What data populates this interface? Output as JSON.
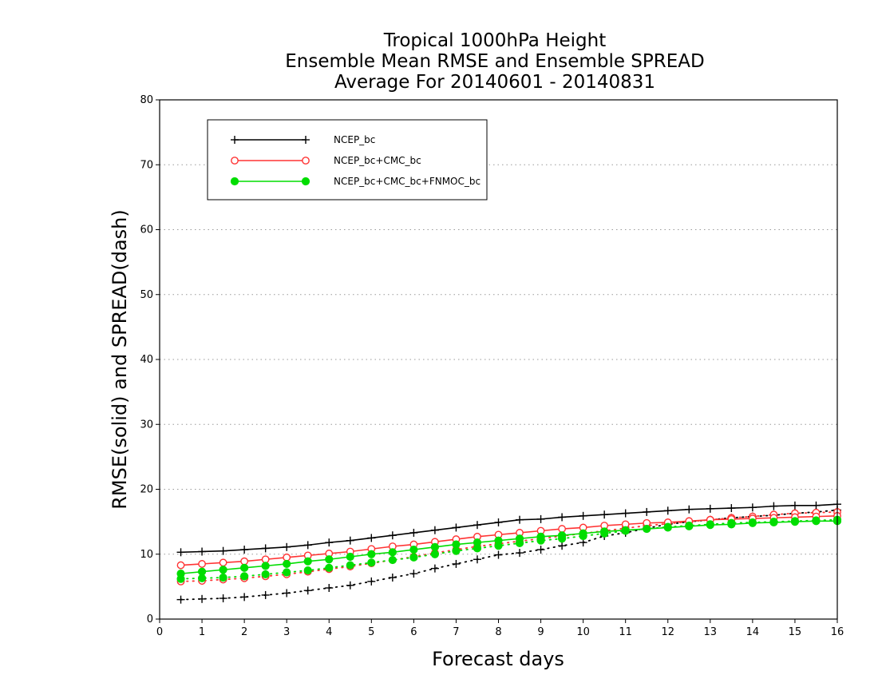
{
  "chart_data": {
    "type": "line",
    "title_lines": [
      "Tropical 1000hPa Height",
      "Ensemble Mean RMSE and Ensemble SPREAD",
      "Average For 20140601 - 20140831"
    ],
    "xlabel": "Forecast days",
    "ylabel": "RMSE(solid) and SPREAD(dash)",
    "xlim": [
      0,
      16
    ],
    "ylim": [
      0,
      80
    ],
    "xticks": [
      0,
      1,
      2,
      3,
      4,
      5,
      6,
      7,
      8,
      9,
      10,
      11,
      12,
      13,
      14,
      15,
      16
    ],
    "yticks": [
      0,
      10,
      20,
      30,
      40,
      50,
      60,
      70,
      80
    ],
    "grid": "horizontal dotted",
    "legend_position": "top-left",
    "x": [
      0.5,
      1,
      1.5,
      2,
      2.5,
      3,
      3.5,
      4,
      4.5,
      5,
      5.5,
      6,
      6.5,
      7,
      7.5,
      8,
      8.5,
      9,
      9.5,
      10,
      10.5,
      11,
      11.5,
      12,
      12.5,
      13,
      13.5,
      14,
      14.5,
      15,
      15.5,
      16
    ],
    "series": [
      {
        "name": "NCEP_bc",
        "color": "#000000",
        "marker": "plus",
        "rmse": [
          10.3,
          10.4,
          10.5,
          10.7,
          10.9,
          11.1,
          11.4,
          11.8,
          12.1,
          12.5,
          12.9,
          13.3,
          13.7,
          14.1,
          14.5,
          14.9,
          15.3,
          15.4,
          15.7,
          15.9,
          16.1,
          16.3,
          16.5,
          16.7,
          16.9,
          17.0,
          17.1,
          17.2,
          17.4,
          17.5,
          17.5,
          17.7
        ],
        "spread": [
          3.0,
          3.1,
          3.2,
          3.4,
          3.7,
          4.0,
          4.4,
          4.8,
          5.2,
          5.8,
          6.4,
          7.0,
          7.8,
          8.5,
          9.2,
          9.9,
          10.2,
          10.7,
          11.3,
          11.8,
          12.8,
          13.3,
          14.0,
          14.6,
          15.0,
          15.3,
          15.6,
          15.8,
          16.0,
          16.3,
          16.5,
          16.8
        ]
      },
      {
        "name": "NCEP_bc+CMC_bc",
        "color": "#ff3333",
        "marker": "open-circle",
        "rmse": [
          8.3,
          8.5,
          8.7,
          8.9,
          9.2,
          9.5,
          9.8,
          10.1,
          10.4,
          10.8,
          11.2,
          11.5,
          11.9,
          12.3,
          12.7,
          13.0,
          13.3,
          13.6,
          13.9,
          14.1,
          14.4,
          14.6,
          14.8,
          14.9,
          15.1,
          15.3,
          15.4,
          15.5,
          15.6,
          15.7,
          15.8,
          15.9
        ],
        "spread": [
          5.8,
          5.9,
          6.1,
          6.3,
          6.6,
          6.9,
          7.3,
          7.7,
          8.1,
          8.6,
          9.1,
          9.6,
          10.2,
          10.7,
          11.2,
          11.6,
          12.0,
          12.4,
          12.8,
          13.2,
          13.6,
          14.0,
          14.4,
          14.7,
          15.0,
          15.3,
          15.6,
          15.8,
          16.1,
          16.3,
          16.4,
          16.5
        ]
      },
      {
        "name": "NCEP_bc+CMC_bc+FNMOC_bc",
        "color": "#00dd00",
        "marker": "filled-circle",
        "rmse": [
          7.0,
          7.3,
          7.6,
          7.9,
          8.2,
          8.5,
          8.9,
          9.2,
          9.6,
          10.0,
          10.3,
          10.7,
          11.1,
          11.5,
          11.8,
          12.1,
          12.4,
          12.7,
          12.9,
          13.2,
          13.5,
          13.7,
          13.9,
          14.1,
          14.3,
          14.5,
          14.6,
          14.8,
          14.9,
          15.0,
          15.1,
          15.1
        ],
        "spread": [
          6.2,
          6.3,
          6.4,
          6.6,
          6.9,
          7.2,
          7.5,
          7.9,
          8.3,
          8.7,
          9.1,
          9.5,
          10.0,
          10.5,
          10.9,
          11.3,
          11.7,
          12.1,
          12.4,
          12.8,
          13.2,
          13.6,
          13.9,
          14.2,
          14.4,
          14.6,
          14.8,
          14.9,
          15.0,
          15.1,
          15.2,
          15.3
        ]
      }
    ]
  }
}
